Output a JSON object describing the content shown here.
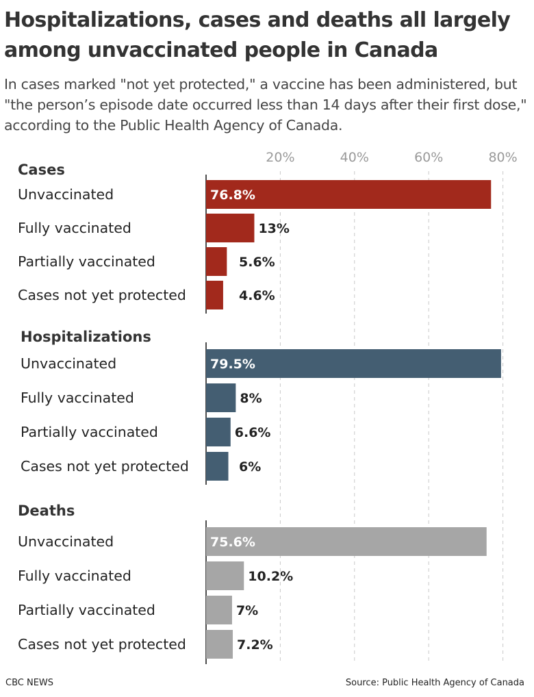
{
  "title": "Hospitalizations, cases and deaths all largely among unvaccinated people in Canada",
  "subtitle": "In cases marked \"not yet protected,\" a vaccine has been administered, but \"the person’s episode date occurred less than 14 days after their first dose,\" according to the Public Health Agency of Canada.",
  "footer": {
    "credit": "CBC NEWS",
    "source": "Source: Public Health Agency of Canada"
  },
  "chart_data": {
    "type": "bar",
    "orientation": "horizontal",
    "xlim": [
      0,
      80
    ],
    "ticks": [
      20,
      40,
      60,
      80
    ],
    "tick_labels": [
      "20%",
      "40%",
      "60%",
      "80%"
    ],
    "grid": true,
    "panels": [
      {
        "name": "Cases",
        "color": "#a2291c",
        "categories": [
          "Unvaccinated",
          "Fully vaccinated",
          "Partially vaccinated",
          "Cases not yet protected"
        ],
        "values": [
          76.8,
          13,
          5.6,
          4.6
        ],
        "labels": [
          "76.8%",
          "13%",
          "5.6%",
          "4.6%"
        ]
      },
      {
        "name": "Hospitalizations",
        "color": "#445e72",
        "categories": [
          "Unvaccinated",
          "Fully vaccinated",
          "Partially vaccinated",
          "Cases not yet protected"
        ],
        "values": [
          79.5,
          8,
          6.6,
          6
        ],
        "labels": [
          "79.5%",
          "8%",
          "6.6%",
          "6%"
        ]
      },
      {
        "name": "Deaths",
        "color": "#a6a6a6",
        "categories": [
          "Unvaccinated",
          "Fully vaccinated",
          "Partially vaccinated",
          "Cases not yet protected"
        ],
        "values": [
          75.6,
          10.2,
          7,
          7.2
        ],
        "labels": [
          "75.6%",
          "10.2%",
          "7%",
          "7.2%"
        ]
      }
    ]
  }
}
